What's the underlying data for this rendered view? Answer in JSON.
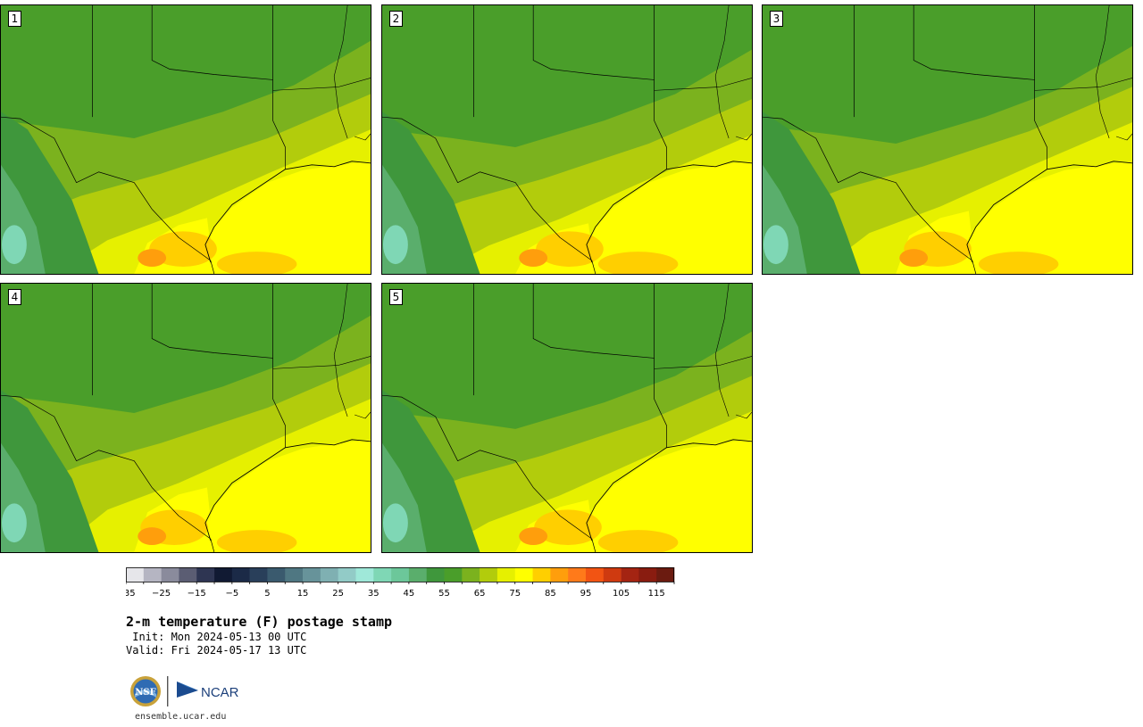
{
  "title": "2-m temperature (F) postage stamp",
  "init_line": " Init: Mon 2024-05-13 00 UTC",
  "valid_line": "Valid: Fri 2024-05-17 13 UTC",
  "footer_url": "ensemble.ucar.edu",
  "logos": {
    "nsf": "NSF",
    "ncar": "NCAR"
  },
  "panels": [
    {
      "label": "1",
      "variant": 0
    },
    {
      "label": "2",
      "variant": 1
    },
    {
      "label": "3",
      "variant": 2
    },
    {
      "label": "4",
      "variant": 3
    },
    {
      "label": "5",
      "variant": 4
    }
  ],
  "colorbar": {
    "unit": "F",
    "min": -35,
    "max": 120,
    "step": 5,
    "tick_labels": [
      "−35",
      "−25",
      "−15",
      "−5",
      "5",
      "15",
      "25",
      "35",
      "45",
      "55",
      "65",
      "75",
      "85",
      "95",
      "105",
      "115"
    ],
    "colors": [
      "#e6e6ea",
      "#b5b5c2",
      "#8a8b9c",
      "#5b5d73",
      "#2e3552",
      "#111a33",
      "#1b2a47",
      "#293f5a",
      "#3a5a6e",
      "#4f7782",
      "#67939a",
      "#7fb0b2",
      "#92cbc7",
      "#9fe8d9",
      "#7fd7b5",
      "#6cc79a",
      "#5aae6c",
      "#3f973c",
      "#4a9e2a",
      "#7bb21e",
      "#b2cc0c",
      "#e6f000",
      "#ffff00",
      "#ffcf00",
      "#ff9e0c",
      "#ff7a1a",
      "#f25413",
      "#cf3a10",
      "#a42412",
      "#891c10",
      "#6b1b10"
    ]
  },
  "map_colors": {
    "t40": "#5aae6c",
    "t55": "#3f973c",
    "t60": "#4a9e2a",
    "t65": "#7bb21e",
    "t70": "#b2cc0c",
    "t75": "#e6f000",
    "t80": "#ffff00",
    "t85": "#ffcf00",
    "t90": "#ff9e0c",
    "border": "#000000"
  }
}
